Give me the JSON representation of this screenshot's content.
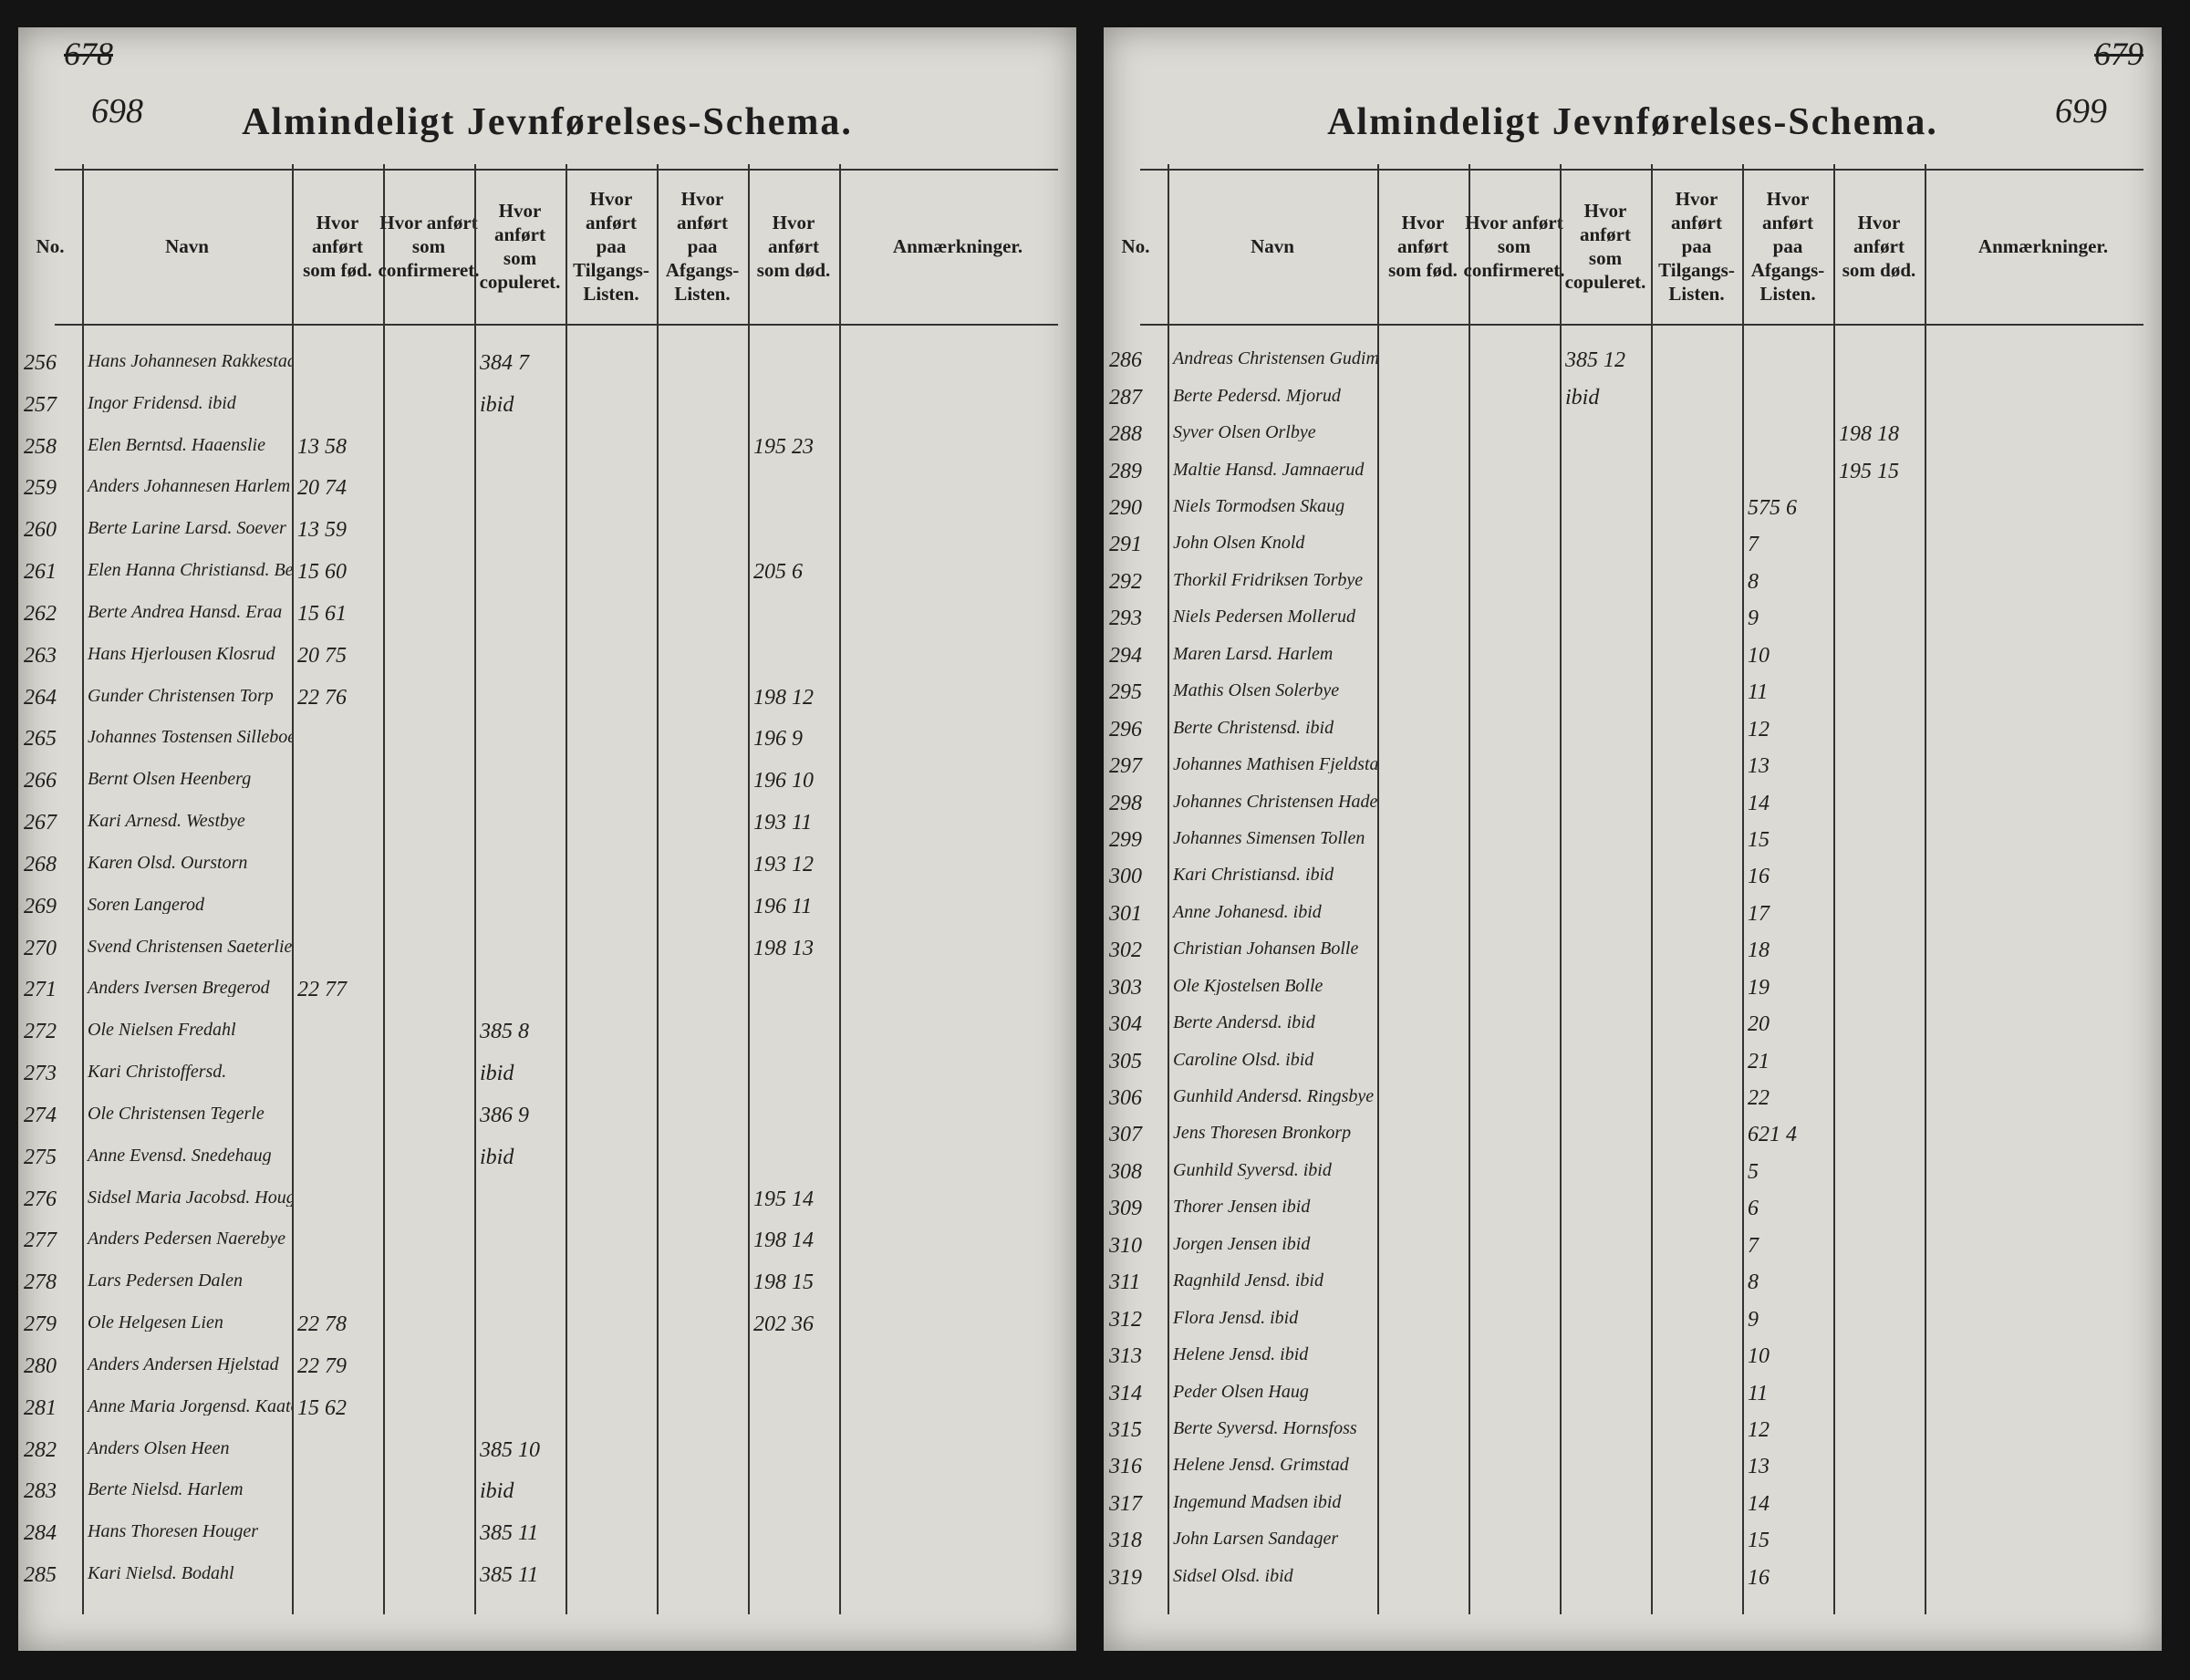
{
  "pages": [
    {
      "page_number": "698",
      "old_page_number": "678",
      "title": "Almindeligt Jevnførelses-Schema.",
      "columns": [
        "No.",
        "Navn",
        "Hvor anført som fød.",
        "Hvor anført som confirmeret.",
        "Hvor anført som copuleret.",
        "Hvor anført paa Tilgangs-Listen.",
        "Hvor anført paa Afgangs-Listen.",
        "Hvor anført som død.",
        "Anmærkninger."
      ],
      "rows": [
        {
          "no": "256",
          "name": "Hans Johannesen Rakkestad",
          "married": "384 7"
        },
        {
          "no": "257",
          "name": "Ingor Fridensd. ibid",
          "married": "ibid"
        },
        {
          "no": "258",
          "name": "Elen Berntsd. Haaenslie",
          "born": "13 58",
          "died": "195 23"
        },
        {
          "no": "259",
          "name": "Anders Johannesen Harlem",
          "born": "20 74"
        },
        {
          "no": "260",
          "name": "Berte Larine Larsd. Soever",
          "born": "13 59"
        },
        {
          "no": "261",
          "name": "Elen Hanna Christiansd. Berg",
          "born": "15 60",
          "died": "205 6"
        },
        {
          "no": "262",
          "name": "Berte Andrea Hansd. Eraa",
          "born": "15 61"
        },
        {
          "no": "263",
          "name": "Hans Hjerlousen Klosrud",
          "born": "20 75"
        },
        {
          "no": "264",
          "name": "Gunder Christensen Torp",
          "born": "22 76",
          "died": "198 12"
        },
        {
          "no": "265",
          "name": "Johannes Tostensen Silleboe",
          "died": "196 9"
        },
        {
          "no": "266",
          "name": "Bernt Olsen Heenberg",
          "died": "196 10"
        },
        {
          "no": "267",
          "name": "Kari Arnesd. Westbye",
          "died": "193 11"
        },
        {
          "no": "268",
          "name": "Karen Olsd. Ourstorn",
          "died": "193 12"
        },
        {
          "no": "269",
          "name": "Soren Langerod",
          "died": "196 11"
        },
        {
          "no": "270",
          "name": "Svend Christensen Saeterlie",
          "died": "198 13"
        },
        {
          "no": "271",
          "name": "Anders Iversen Bregerod",
          "born": "22 77"
        },
        {
          "no": "272",
          "name": "Ole Nielsen Fredahl",
          "married": "385 8"
        },
        {
          "no": "273",
          "name": "Kari Christoffersd.",
          "married": "ibid"
        },
        {
          "no": "274",
          "name": "Ole Christensen Tegerle",
          "married": "386 9"
        },
        {
          "no": "275",
          "name": "Anne Evensd. Snedehaug",
          "married": "ibid"
        },
        {
          "no": "276",
          "name": "Sidsel Maria Jacobsd. Houger",
          "died": "195 14"
        },
        {
          "no": "277",
          "name": "Anders Pedersen Naerebye",
          "died": "198 14"
        },
        {
          "no": "278",
          "name": "Lars Pedersen Dalen",
          "died": "198 15"
        },
        {
          "no": "279",
          "name": "Ole Helgesen Lien",
          "born": "22 78",
          "died": "202 36"
        },
        {
          "no": "280",
          "name": "Anders Andersen Hjelstad",
          "born": "22 79"
        },
        {
          "no": "281",
          "name": "Anne Maria Jorgensd. Kaatorp",
          "born": "15 62"
        },
        {
          "no": "282",
          "name": "Anders Olsen Heen",
          "married": "385 10"
        },
        {
          "no": "283",
          "name": "Berte Nielsd. Harlem",
          "married": "ibid"
        },
        {
          "no": "284",
          "name": "Hans Thoresen Houger",
          "married": "385 11"
        },
        {
          "no": "285",
          "name": "Kari Nielsd. Bodahl",
          "married": "385 11"
        }
      ]
    },
    {
      "page_number": "699",
      "old_page_number": "679",
      "title": "Almindeligt Jevnførelses-Schema.",
      "columns": [
        "No.",
        "Navn",
        "Hvor anført som fød.",
        "Hvor anført som confirmeret.",
        "Hvor anført som copuleret.",
        "Hvor anført paa Tilgangs-Listen.",
        "Hvor anført paa Afgangs-Listen.",
        "Hvor anført som død.",
        "Anmærkninger."
      ],
      "rows": [
        {
          "no": "286",
          "name": "Andreas Christensen Gudim",
          "married": "385 12"
        },
        {
          "no": "287",
          "name": "Berte Pedersd. Mjorud",
          "married": "ibid"
        },
        {
          "no": "288",
          "name": "Syver Olsen Orlbye",
          "died": "198 18"
        },
        {
          "no": "289",
          "name": "Maltie Hansd. Jamnaerud",
          "died": "195 15"
        },
        {
          "no": "290",
          "name": "Niels Tormodsen Skaug",
          "departures": "575 6"
        },
        {
          "no": "291",
          "name": "John Olsen Knold",
          "departures": "7"
        },
        {
          "no": "292",
          "name": "Thorkil Fridriksen Torbye",
          "departures": "8"
        },
        {
          "no": "293",
          "name": "Niels Pedersen Mollerud",
          "departures": "9"
        },
        {
          "no": "294",
          "name": "Maren Larsd. Harlem",
          "departures": "10"
        },
        {
          "no": "295",
          "name": "Mathis Olsen Solerbye",
          "departures": "11"
        },
        {
          "no": "296",
          "name": "Berte Christensd. ibid",
          "departures": "12"
        },
        {
          "no": "297",
          "name": "Johannes Mathisen Fjeldstad",
          "departures": "13"
        },
        {
          "no": "298",
          "name": "Johannes Christensen Hadestad",
          "departures": "14"
        },
        {
          "no": "299",
          "name": "Johannes Simensen Tollen",
          "departures": "15"
        },
        {
          "no": "300",
          "name": "Kari Christiansd. ibid",
          "departures": "16"
        },
        {
          "no": "301",
          "name": "Anne Johanesd. ibid",
          "departures": "17"
        },
        {
          "no": "302",
          "name": "Christian Johansen Bolle",
          "departures": "18"
        },
        {
          "no": "303",
          "name": "Ole Kjostelsen Bolle",
          "departures": "19"
        },
        {
          "no": "304",
          "name": "Berte Andersd. ibid",
          "departures": "20"
        },
        {
          "no": "305",
          "name": "Caroline Olsd. ibid",
          "departures": "21"
        },
        {
          "no": "306",
          "name": "Gunhild Andersd. Ringsbye",
          "departures": "22"
        },
        {
          "no": "307",
          "name": "Jens Thoresen Bronkorp",
          "departures": "621 4"
        },
        {
          "no": "308",
          "name": "Gunhild Syversd. ibid",
          "departures": "5"
        },
        {
          "no": "309",
          "name": "Thorer Jensen ibid",
          "departures": "6"
        },
        {
          "no": "310",
          "name": "Jorgen Jensen ibid",
          "departures": "7"
        },
        {
          "no": "311",
          "name": "Ragnhild Jensd. ibid",
          "departures": "8"
        },
        {
          "no": "312",
          "name": "Flora Jensd. ibid",
          "departures": "9"
        },
        {
          "no": "313",
          "name": "Helene Jensd. ibid",
          "departures": "10"
        },
        {
          "no": "314",
          "name": "Peder Olsen Haug",
          "departures": "11"
        },
        {
          "no": "315",
          "name": "Berte Syversd. Hornsfoss",
          "departures": "12"
        },
        {
          "no": "316",
          "name": "Helene Jensd. Grimstad",
          "departures": "13"
        },
        {
          "no": "317",
          "name": "Ingemund Madsen ibid",
          "departures": "14"
        },
        {
          "no": "318",
          "name": "John Larsen Sandager",
          "departures": "15"
        },
        {
          "no": "319",
          "name": "Sidsel Olsd. ibid",
          "departures": "16"
        }
      ]
    }
  ]
}
